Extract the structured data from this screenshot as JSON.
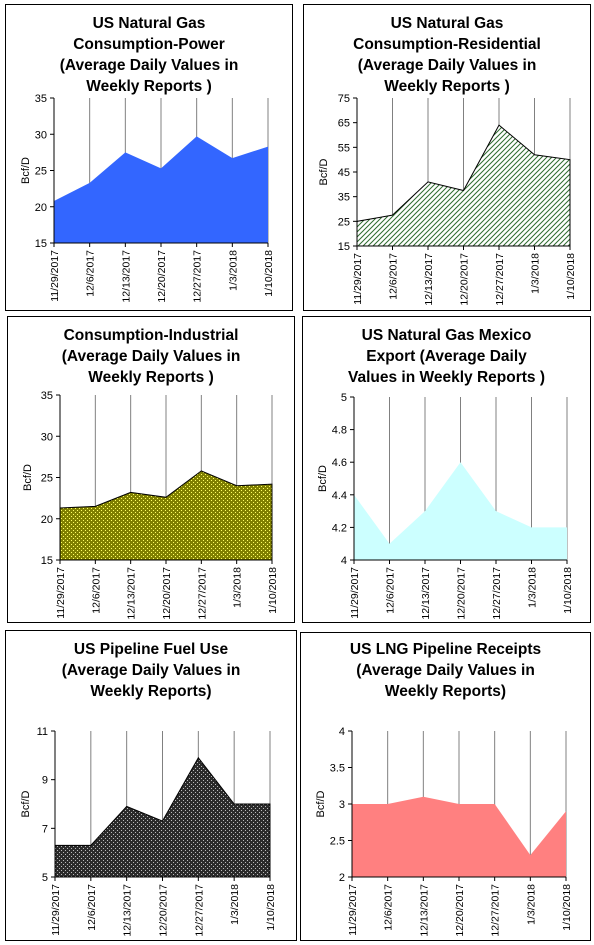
{
  "ylabel": "Bcf/D",
  "categories": [
    "11/29/2017",
    "12/6/2017",
    "12/13/2017",
    "12/20/2017",
    "12/27/2017",
    "1/3/2018",
    "1/10/2018"
  ],
  "chart_data": [
    {
      "type": "area",
      "title_lines": [
        "US Natural Gas",
        "Consumption-Power",
        "(Average Daily Values in",
        "Weekly Reports )"
      ],
      "ylabel": "Bcf/D",
      "ylim": [
        15,
        35
      ],
      "yticks": [
        "15",
        "20",
        "25",
        "30",
        "35"
      ],
      "values": [
        20.8,
        23.3,
        27.5,
        25.3,
        29.7,
        26.7,
        28.3
      ],
      "grid": "vertical"
    },
    {
      "type": "area",
      "title_lines": [
        "US Natural Gas",
        "Consumption-Residential",
        "(Average Daily Values in",
        "Weekly Reports )"
      ],
      "ylabel": "Bcf/D",
      "ylim": [
        15,
        75
      ],
      "yticks": [
        "15",
        "25",
        "35",
        "45",
        "55",
        "65",
        "75"
      ],
      "values": [
        25,
        27.5,
        41,
        37.5,
        64,
        52,
        50
      ],
      "grid": "vertical"
    },
    {
      "type": "area",
      "title_lines": [
        "Consumption-Industrial",
        "(Average Daily Values in",
        "Weekly Reports )"
      ],
      "ylabel": "Bcf/D",
      "ylim": [
        15,
        35
      ],
      "yticks": [
        "15",
        "20",
        "25",
        "30",
        "35"
      ],
      "values": [
        21.3,
        21.5,
        23.2,
        22.6,
        25.8,
        24.0,
        24.2
      ],
      "grid": "vertical"
    },
    {
      "type": "area",
      "title_lines": [
        "US Natural Gas Mexico",
        "Export (Average Daily",
        "Values in Weekly Reports )"
      ],
      "ylabel": "Bcf/D",
      "ylim": [
        4,
        5
      ],
      "yticks": [
        "4",
        "4.2",
        "4.4",
        "4.6",
        "4.8",
        "5"
      ],
      "values": [
        4.4,
        4.1,
        4.3,
        4.6,
        4.3,
        4.2,
        4.2
      ],
      "grid": "vertical"
    },
    {
      "type": "area",
      "title_lines": [
        "US Pipeline Fuel Use",
        "(Average Daily Values in",
        "Weekly Reports)"
      ],
      "ylabel": "Bcf/D",
      "ylim": [
        5,
        11
      ],
      "yticks": [
        "5",
        "7",
        "9",
        "11"
      ],
      "values": [
        6.3,
        6.3,
        7.9,
        7.3,
        9.9,
        8.0,
        8.0
      ],
      "grid": "vertical"
    },
    {
      "type": "area",
      "title_lines": [
        "US LNG Pipeline Receipts",
        "(Average Daily Values in",
        "Weekly Reports)"
      ],
      "ylabel": "Bcf/D",
      "ylim": [
        2,
        4
      ],
      "yticks": [
        "2",
        "2.5",
        "3",
        "3.5",
        "4"
      ],
      "values": [
        3.0,
        3.0,
        3.1,
        3.0,
        3.0,
        2.3,
        2.9
      ],
      "grid": "vertical"
    }
  ],
  "styles": [
    {
      "fill": "#3366ff",
      "stroke": "none",
      "pattern": "none"
    },
    {
      "fill": "#ffffff",
      "stroke": "#000000",
      "pattern": "diagonal-hatch",
      "patternColor": "#2e6b2e"
    },
    {
      "fill": "#808000",
      "stroke": "#000000",
      "pattern": "dots",
      "patternColor": "#ffff66"
    },
    {
      "fill": "#ccffff",
      "stroke": "none",
      "pattern": "none"
    },
    {
      "fill": "#2b2b2b",
      "stroke": "#000000",
      "pattern": "dots",
      "patternColor": "#bbbbbb"
    },
    {
      "fill": "#ff8080",
      "stroke": "none",
      "pattern": "none"
    }
  ]
}
